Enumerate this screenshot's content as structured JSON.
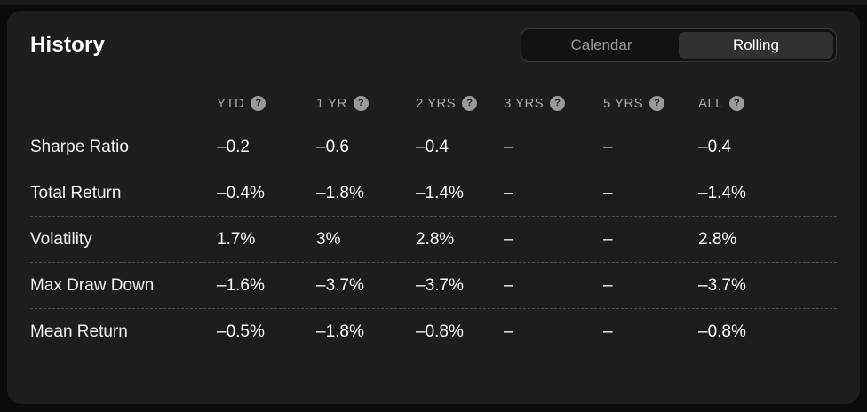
{
  "card": {
    "title": "History",
    "toggle": {
      "options": [
        {
          "label": "Calendar",
          "selected": false
        },
        {
          "label": "Rolling",
          "selected": true
        }
      ]
    },
    "table": {
      "columns": [
        {
          "label": "YTD",
          "help_icon": "?"
        },
        {
          "label": "1 YR",
          "help_icon": "?"
        },
        {
          "label": "2 YRS",
          "help_icon": "?"
        },
        {
          "label": "3 YRS",
          "help_icon": "?"
        },
        {
          "label": "5 YRS",
          "help_icon": "?"
        },
        {
          "label": "ALL",
          "help_icon": "?"
        }
      ],
      "rows": [
        {
          "label": "Sharpe Ratio",
          "values": [
            "–0.2",
            "–0.6",
            "–0.4",
            "–",
            "–",
            "–0.4"
          ]
        },
        {
          "label": "Total Return",
          "values": [
            "–0.4%",
            "–1.8%",
            "–1.4%",
            "–",
            "–",
            "–1.4%"
          ]
        },
        {
          "label": "Volatility",
          "values": [
            "1.7%",
            "3%",
            "2.8%",
            "–",
            "–",
            "2.8%"
          ]
        },
        {
          "label": "Max Draw Down",
          "values": [
            "–1.6%",
            "–3.7%",
            "–3.7%",
            "–",
            "–",
            "–3.7%"
          ]
        },
        {
          "label": "Mean Return",
          "values": [
            "–0.5%",
            "–1.8%",
            "–0.8%",
            "–",
            "–",
            "–0.8%"
          ]
        }
      ]
    }
  },
  "colors": {
    "page_background": "#0b0b0d",
    "card_background": "#1d1d1f",
    "selected_segment": "#303033",
    "muted_text": "#a8a8ad",
    "value_text": "#ffffff",
    "divider": "#4c4c4e"
  }
}
